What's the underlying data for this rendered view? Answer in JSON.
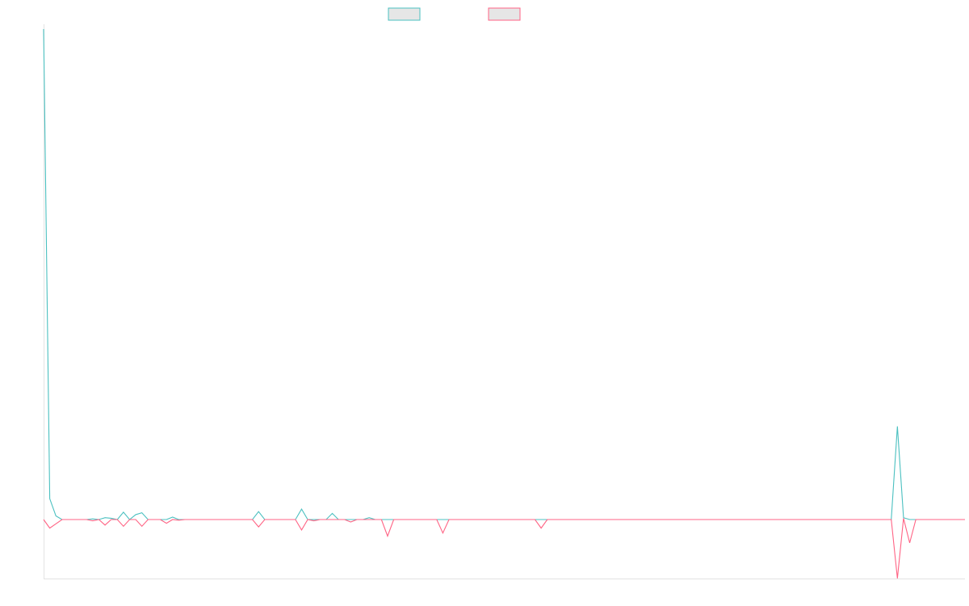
{
  "chart_data": {
    "type": "line",
    "title": "",
    "xlabel": "",
    "ylabel": "",
    "grid": false,
    "legend_position": "top-center",
    "x_count": 151,
    "ylim": [
      -4.8,
      40
    ],
    "colors": {
      "series_1": "#4bc0c0",
      "series_2": "#ff6384",
      "legend_fill": "#e6e6e6",
      "axis": "#e3e3e3"
    },
    "series": [
      {
        "key": "series_1",
        "color": "#4bc0c0",
        "points": [
          [
            0,
            40
          ],
          [
            1,
            1.7
          ],
          [
            2,
            0.3
          ],
          [
            3,
            0
          ],
          [
            4,
            0
          ],
          [
            5,
            0
          ],
          [
            6,
            0
          ],
          [
            7,
            0
          ],
          [
            8,
            0.05
          ],
          [
            9,
            0
          ],
          [
            10,
            0.15
          ],
          [
            11,
            0.1
          ],
          [
            12,
            0
          ],
          [
            13,
            0.6
          ],
          [
            14,
            0
          ],
          [
            15,
            0.4
          ],
          [
            16,
            0.55
          ],
          [
            17,
            0
          ],
          [
            18,
            0
          ],
          [
            19,
            0
          ],
          [
            20,
            0
          ],
          [
            21,
            0.2
          ],
          [
            22,
            0
          ],
          [
            23,
            0
          ],
          [
            24,
            0
          ],
          [
            25,
            0
          ],
          [
            26,
            0
          ],
          [
            27,
            0
          ],
          [
            28,
            0
          ],
          [
            29,
            0
          ],
          [
            30,
            0
          ],
          [
            31,
            0
          ],
          [
            32,
            0
          ],
          [
            33,
            0
          ],
          [
            34,
            0
          ],
          [
            35,
            0.65
          ],
          [
            36,
            0
          ],
          [
            37,
            0
          ],
          [
            38,
            0
          ],
          [
            39,
            0
          ],
          [
            40,
            0
          ],
          [
            41,
            0
          ],
          [
            42,
            0.85
          ],
          [
            43,
            0
          ],
          [
            44,
            0
          ],
          [
            45,
            0
          ],
          [
            46,
            0
          ],
          [
            47,
            0.5
          ],
          [
            48,
            0
          ],
          [
            49,
            0
          ],
          [
            50,
            0
          ],
          [
            51,
            0
          ],
          [
            52,
            0
          ],
          [
            53,
            0.15
          ],
          [
            54,
            0
          ],
          [
            55,
            0
          ],
          [
            56,
            0
          ],
          [
            57,
            0
          ],
          [
            58,
            0
          ],
          [
            59,
            0
          ],
          [
            60,
            0
          ],
          [
            61,
            0
          ],
          [
            62,
            0
          ],
          [
            63,
            0
          ],
          [
            64,
            0
          ],
          [
            65,
            0
          ],
          [
            66,
            0
          ],
          [
            67,
            0
          ],
          [
            68,
            0
          ],
          [
            69,
            0
          ],
          [
            70,
            0
          ],
          [
            71,
            0
          ],
          [
            72,
            0
          ],
          [
            73,
            0
          ],
          [
            74,
            0
          ],
          [
            75,
            0
          ],
          [
            76,
            0
          ],
          [
            77,
            0
          ],
          [
            78,
            0
          ],
          [
            79,
            0
          ],
          [
            80,
            0
          ],
          [
            81,
            0
          ],
          [
            82,
            0
          ],
          [
            83,
            0
          ],
          [
            84,
            0
          ],
          [
            85,
            0
          ],
          [
            86,
            0
          ],
          [
            87,
            0
          ],
          [
            88,
            0
          ],
          [
            89,
            0
          ],
          [
            90,
            0
          ],
          [
            91,
            0
          ],
          [
            92,
            0
          ],
          [
            93,
            0
          ],
          [
            94,
            0
          ],
          [
            95,
            0
          ],
          [
            96,
            0
          ],
          [
            97,
            0
          ],
          [
            98,
            0
          ],
          [
            99,
            0
          ],
          [
            100,
            0
          ],
          [
            101,
            0
          ],
          [
            102,
            0
          ],
          [
            103,
            0
          ],
          [
            104,
            0
          ],
          [
            105,
            0
          ],
          [
            106,
            0
          ],
          [
            107,
            0
          ],
          [
            108,
            0
          ],
          [
            109,
            0
          ],
          [
            110,
            0
          ],
          [
            111,
            0
          ],
          [
            112,
            0
          ],
          [
            113,
            0
          ],
          [
            114,
            0
          ],
          [
            115,
            0
          ],
          [
            116,
            0
          ],
          [
            117,
            0
          ],
          [
            118,
            0
          ],
          [
            119,
            0
          ],
          [
            120,
            0
          ],
          [
            121,
            0
          ],
          [
            122,
            0
          ],
          [
            123,
            0
          ],
          [
            124,
            0
          ],
          [
            125,
            0
          ],
          [
            126,
            0
          ],
          [
            127,
            0
          ],
          [
            128,
            0
          ],
          [
            129,
            0
          ],
          [
            130,
            0
          ],
          [
            131,
            0
          ],
          [
            132,
            0
          ],
          [
            133,
            0
          ],
          [
            134,
            0
          ],
          [
            135,
            0
          ],
          [
            136,
            0
          ],
          [
            137,
            0
          ],
          [
            138,
            0
          ],
          [
            139,
            7.6
          ],
          [
            140,
            0.15
          ],
          [
            141,
            0
          ],
          [
            142,
            0
          ],
          [
            143,
            0
          ],
          [
            144,
            0
          ],
          [
            145,
            0
          ],
          [
            146,
            0
          ],
          [
            147,
            0
          ],
          [
            148,
            0
          ],
          [
            149,
            0
          ],
          [
            150,
            0
          ]
        ]
      },
      {
        "key": "series_2",
        "color": "#ff6384",
        "points": [
          [
            0,
            0
          ],
          [
            1,
            -0.7
          ],
          [
            2,
            -0.35
          ],
          [
            3,
            0
          ],
          [
            4,
            0
          ],
          [
            5,
            0
          ],
          [
            6,
            0
          ],
          [
            7,
            0
          ],
          [
            8,
            -0.1
          ],
          [
            9,
            0
          ],
          [
            10,
            -0.45
          ],
          [
            11,
            0
          ],
          [
            12,
            0
          ],
          [
            13,
            -0.55
          ],
          [
            14,
            0
          ],
          [
            15,
            0
          ],
          [
            16,
            -0.55
          ],
          [
            17,
            0
          ],
          [
            18,
            0
          ],
          [
            19,
            0
          ],
          [
            20,
            -0.3
          ],
          [
            21,
            0
          ],
          [
            22,
            -0.05
          ],
          [
            23,
            0
          ],
          [
            24,
            0
          ],
          [
            25,
            0
          ],
          [
            26,
            0
          ],
          [
            27,
            0
          ],
          [
            28,
            0
          ],
          [
            29,
            0
          ],
          [
            30,
            0
          ],
          [
            31,
            0
          ],
          [
            32,
            0
          ],
          [
            33,
            0
          ],
          [
            34,
            0
          ],
          [
            35,
            -0.6
          ],
          [
            36,
            0
          ],
          [
            37,
            0
          ],
          [
            38,
            0
          ],
          [
            39,
            0
          ],
          [
            40,
            0
          ],
          [
            41,
            0
          ],
          [
            42,
            -0.85
          ],
          [
            43,
            0
          ],
          [
            44,
            -0.1
          ],
          [
            45,
            0
          ],
          [
            46,
            0
          ],
          [
            47,
            0
          ],
          [
            48,
            0
          ],
          [
            49,
            0
          ],
          [
            50,
            -0.2
          ],
          [
            51,
            0
          ],
          [
            52,
            0
          ],
          [
            53,
            0
          ],
          [
            54,
            0
          ],
          [
            55,
            0
          ],
          [
            56,
            0
          ],
          [
            57,
            0
          ],
          [
            58,
            0
          ],
          [
            59,
            0
          ],
          [
            60,
            0
          ],
          [
            61,
            0
          ],
          [
            62,
            0
          ],
          [
            63,
            0
          ],
          [
            64,
            0
          ],
          [
            65,
            0
          ],
          [
            66,
            0
          ],
          [
            67,
            0
          ],
          [
            68,
            0
          ],
          [
            69,
            0
          ],
          [
            70,
            0
          ],
          [
            71,
            0
          ],
          [
            72,
            0
          ],
          [
            73,
            0
          ],
          [
            74,
            0
          ],
          [
            75,
            0
          ],
          [
            76,
            0
          ],
          [
            77,
            0
          ],
          [
            78,
            0
          ],
          [
            79,
            0
          ],
          [
            80,
            0
          ],
          [
            81,
            0
          ],
          [
            82,
            0
          ],
          [
            83,
            0
          ],
          [
            84,
            0
          ],
          [
            85,
            0
          ],
          [
            86,
            0
          ],
          [
            87,
            0
          ],
          [
            88,
            0
          ],
          [
            89,
            0
          ],
          [
            90,
            0
          ],
          [
            91,
            0
          ],
          [
            92,
            0
          ],
          [
            93,
            0
          ],
          [
            94,
            0
          ],
          [
            95,
            0
          ],
          [
            96,
            0
          ],
          [
            97,
            0
          ],
          [
            98,
            0
          ],
          [
            99,
            0
          ],
          [
            100,
            0
          ],
          [
            101,
            0
          ],
          [
            102,
            0
          ],
          [
            103,
            0
          ],
          [
            104,
            0
          ],
          [
            105,
            0
          ],
          [
            106,
            0
          ],
          [
            107,
            0
          ],
          [
            108,
            0
          ],
          [
            109,
            0
          ],
          [
            110,
            0
          ],
          [
            111,
            0
          ],
          [
            112,
            0
          ],
          [
            113,
            0
          ],
          [
            114,
            0
          ],
          [
            115,
            0
          ],
          [
            116,
            0
          ],
          [
            117,
            0
          ],
          [
            118,
            0
          ],
          [
            119,
            0
          ],
          [
            120,
            0
          ],
          [
            121,
            0
          ],
          [
            122,
            0
          ],
          [
            123,
            0
          ],
          [
            124,
            0
          ],
          [
            125,
            0
          ],
          [
            126,
            0
          ],
          [
            127,
            0
          ],
          [
            128,
            0
          ],
          [
            129,
            0
          ],
          [
            130,
            0
          ],
          [
            131,
            0
          ],
          [
            132,
            0
          ],
          [
            133,
            0
          ],
          [
            134,
            0
          ],
          [
            135,
            0
          ],
          [
            136,
            0
          ],
          [
            137,
            0
          ],
          [
            138,
            0
          ],
          [
            139,
            -4.8
          ],
          [
            140,
            0.1
          ],
          [
            141,
            -1.9
          ],
          [
            142,
            0
          ],
          [
            143,
            0
          ],
          [
            144,
            0
          ],
          [
            145,
            0
          ],
          [
            146,
            0
          ],
          [
            147,
            0
          ],
          [
            148,
            0
          ],
          [
            149,
            0
          ],
          [
            150,
            0
          ]
        ],
        "overrides": [
          [
            56,
            -1.35
          ],
          [
            57,
            0
          ],
          [
            65,
            -1.1
          ],
          [
            66,
            0
          ],
          [
            74,
            0
          ],
          [
            81,
            -0.7
          ]
        ]
      }
    ]
  }
}
